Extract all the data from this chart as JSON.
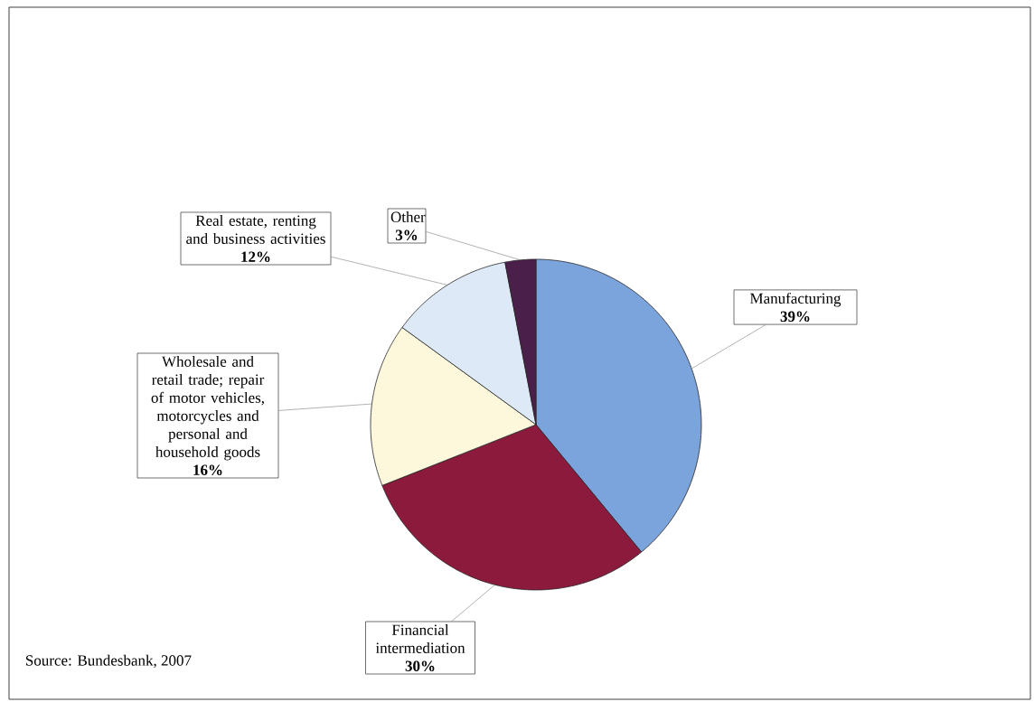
{
  "chart_data": {
    "type": "pie",
    "categories": [
      "Manufacturing",
      "Financial intermediation",
      "Wholesale and retail trade; repair of motor vehicles, motorcycles and personal and household goods",
      "Real estate, renting and business activities",
      "Other"
    ],
    "values": [
      39,
      30,
      16,
      12,
      3
    ],
    "value_labels": [
      "39%",
      "30%",
      "16%",
      "12%",
      "3%"
    ],
    "colors": [
      "#7ba3dc",
      "#8b1a3c",
      "#fdf8dc",
      "#dde9f7",
      "#4a1f4a"
    ],
    "annotations": [
      "Source: Bundesbank, 2007"
    ]
  }
}
